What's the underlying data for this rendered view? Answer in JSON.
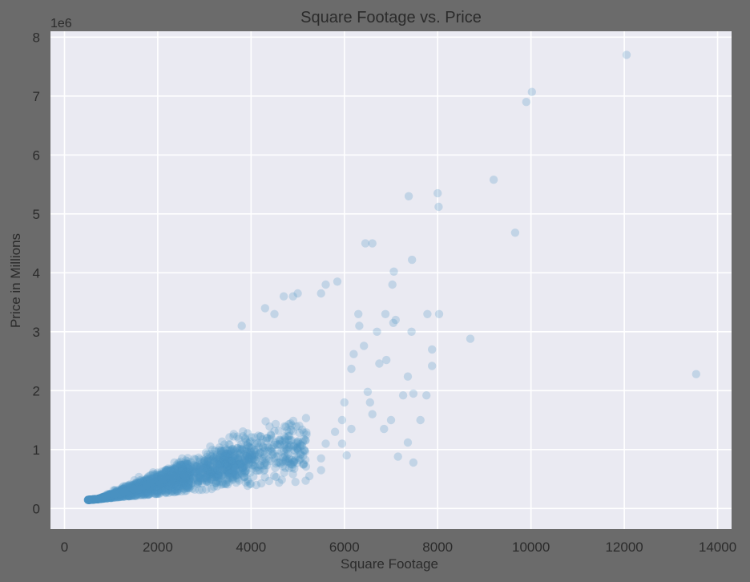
{
  "chart_data": {
    "type": "scatter",
    "title": "Square Footage vs. Price",
    "xlabel": "Square Footage",
    "ylabel": "Price in Millions",
    "y_offset_label": "1e6",
    "xlim": [
      -300,
      14300
    ],
    "ylim": [
      -350000,
      8100000
    ],
    "x_ticks": [
      0,
      2000,
      4000,
      6000,
      8000,
      10000,
      12000,
      14000
    ],
    "x_tick_labels": [
      "0",
      "2000",
      "4000",
      "6000",
      "8000",
      "10000",
      "12000",
      "14000"
    ],
    "y_ticks": [
      0,
      1000000,
      2000000,
      3000000,
      4000000,
      5000000,
      6000000,
      7000000,
      8000000
    ],
    "y_tick_labels": [
      "0",
      "1",
      "2",
      "3",
      "4",
      "5",
      "6",
      "7",
      "8"
    ],
    "grid": true,
    "colors": {
      "background": "#6b6b6b",
      "plot_area": "#eaeaf2",
      "grid": "#ffffff",
      "point": "#4c93c3"
    },
    "point_opacity": 0.25,
    "series": [
      {
        "values": [
          [
            12050,
            7700000
          ],
          [
            10020,
            7070000
          ],
          [
            9900,
            6900000
          ],
          [
            9200,
            5580000
          ],
          [
            9660,
            4680000
          ],
          [
            8000,
            5350000
          ],
          [
            8020,
            5120000
          ],
          [
            7380,
            5300000
          ],
          [
            6600,
            4500000
          ],
          [
            6450,
            4500000
          ],
          [
            7450,
            4220000
          ],
          [
            7060,
            4020000
          ],
          [
            7030,
            3800000
          ],
          [
            13540,
            2280000
          ],
          [
            8700,
            2880000
          ],
          [
            8030,
            3300000
          ],
          [
            7780,
            3300000
          ],
          [
            7880,
            2700000
          ],
          [
            7880,
            2420000
          ],
          [
            7440,
            3000000
          ],
          [
            7100,
            3200000
          ],
          [
            7050,
            3150000
          ],
          [
            6880,
            3300000
          ],
          [
            6700,
            3000000
          ],
          [
            6420,
            2760000
          ],
          [
            6300,
            3300000
          ],
          [
            6320,
            3100000
          ],
          [
            5850,
            3850000
          ],
          [
            5600,
            3800000
          ],
          [
            5500,
            3650000
          ],
          [
            5000,
            3650000
          ],
          [
            4900,
            3600000
          ],
          [
            4700,
            3600000
          ],
          [
            4500,
            3300000
          ],
          [
            4300,
            3400000
          ],
          [
            3800,
            3100000
          ],
          [
            7360,
            2240000
          ],
          [
            7480,
            1950000
          ],
          [
            7760,
            1920000
          ],
          [
            7260,
            1920000
          ],
          [
            7360,
            1120000
          ],
          [
            7480,
            780000
          ],
          [
            7150,
            880000
          ],
          [
            7000,
            1500000
          ],
          [
            6850,
            1350000
          ],
          [
            6750,
            2460000
          ],
          [
            6900,
            2520000
          ],
          [
            6550,
            1800000
          ],
          [
            6600,
            1600000
          ],
          [
            6500,
            1980000
          ],
          [
            7630,
            1500000
          ],
          [
            6200,
            2620000
          ],
          [
            6150,
            2370000
          ],
          [
            6000,
            1800000
          ],
          [
            5950,
            1500000
          ],
          [
            5800,
            1300000
          ],
          [
            5600,
            1100000
          ],
          [
            5500,
            850000
          ],
          [
            5950,
            1100000
          ],
          [
            6150,
            1350000
          ],
          [
            4950,
            450000
          ],
          [
            5250,
            550000
          ],
          [
            5500,
            650000
          ],
          [
            6050,
            900000
          ]
        ]
      }
    ]
  }
}
